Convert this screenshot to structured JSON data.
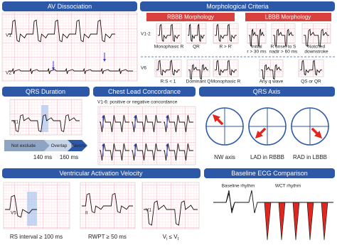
{
  "av_dissociation": {
    "title": "AV Dissociation",
    "leads": [
      "V1",
      "V2"
    ]
  },
  "morphological_criteria": {
    "title": "Morphological Criteria",
    "rbbb_header": "RBBB Morphology",
    "lbbb_header": "LBBB Morphology",
    "row_leads": [
      "V1-2",
      "V6"
    ],
    "v12_labels": [
      [
        "Monophasic R"
      ],
      [
        "QR"
      ],
      [
        "R > R'"
      ],
      [
        "Initial",
        "r > 30 ms"
      ],
      [
        "R onset to S",
        "nadir > 60 ms"
      ],
      [
        "Notched",
        "downstroke"
      ]
    ],
    "v6_labels": [
      "R:S < 1",
      "Dominant Q",
      "Monophasic R",
      "Any q wave",
      "QS or QR"
    ]
  },
  "qrs_duration": {
    "title": "QRS Duration",
    "lead": "V1",
    "bands": [
      "Not exclude",
      "Overlap",
      "Favors"
    ],
    "thresholds": [
      "140 ms",
      "160 ms"
    ]
  },
  "chest_lead_concordance": {
    "title": "Chest Lead Concordance",
    "subtitle": "V1-6: positive or negative concordance"
  },
  "qrs_axis": {
    "title": "QRS Axis",
    "labels": [
      "NW axis",
      "LAD in RBBB",
      "RAD in LBBB"
    ]
  },
  "ventricular_activation_velocity": {
    "title": "Ventricular Activation Velocity",
    "panels": [
      {
        "lead": "V5",
        "caption": "RS interval ≥ 100 ms"
      },
      {
        "lead": "II",
        "caption": "RWPT ≥ 50 ms"
      },
      {
        "lead": "V1",
        "caption": [
          "V",
          "i",
          " ≤ V",
          "t"
        ]
      }
    ]
  },
  "baseline_ecg_comparison": {
    "title": "Baseline ECG Comparison",
    "labels": [
      "Baseline rhythm",
      "WCT rhythm"
    ]
  }
}
